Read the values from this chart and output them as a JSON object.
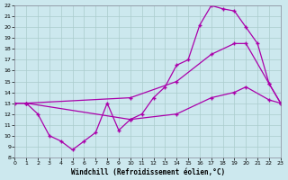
{
  "xlabel": "Windchill (Refroidissement éolien,°C)",
  "bg_color": "#cce8ee",
  "grid_color": "#aacccc",
  "line_color": "#aa00aa",
  "xlim": [
    0,
    23
  ],
  "ylim": [
    8,
    22
  ],
  "xticks": [
    0,
    1,
    2,
    3,
    4,
    5,
    6,
    7,
    8,
    9,
    10,
    11,
    12,
    13,
    14,
    15,
    16,
    17,
    18,
    19,
    20,
    21,
    22,
    23
  ],
  "yticks": [
    8,
    9,
    10,
    11,
    12,
    13,
    14,
    15,
    16,
    17,
    18,
    19,
    20,
    21,
    22
  ],
  "line1_x": [
    0,
    1,
    2,
    3,
    4,
    5,
    6,
    7,
    8,
    9,
    10,
    11,
    12,
    13,
    14,
    15,
    16,
    17,
    18,
    19,
    20,
    21,
    22,
    23
  ],
  "line1_y": [
    13.0,
    13.0,
    12.0,
    10.0,
    9.5,
    8.7,
    9.5,
    10.3,
    13.0,
    10.5,
    11.5,
    12.0,
    13.5,
    14.5,
    16.5,
    17.0,
    20.2,
    22.0,
    21.7,
    21.5,
    20.0,
    18.5,
    14.8,
    13.0
  ],
  "line2_x": [
    0,
    1,
    10,
    14,
    17,
    19,
    20,
    22,
    23
  ],
  "line2_y": [
    13.0,
    13.0,
    13.5,
    15.0,
    17.5,
    18.5,
    18.5,
    14.8,
    13.0
  ],
  "line3_x": [
    0,
    1,
    10,
    14,
    17,
    19,
    20,
    22,
    23
  ],
  "line3_y": [
    13.0,
    13.0,
    11.5,
    12.0,
    13.5,
    14.0,
    14.5,
    13.3,
    13.0
  ]
}
